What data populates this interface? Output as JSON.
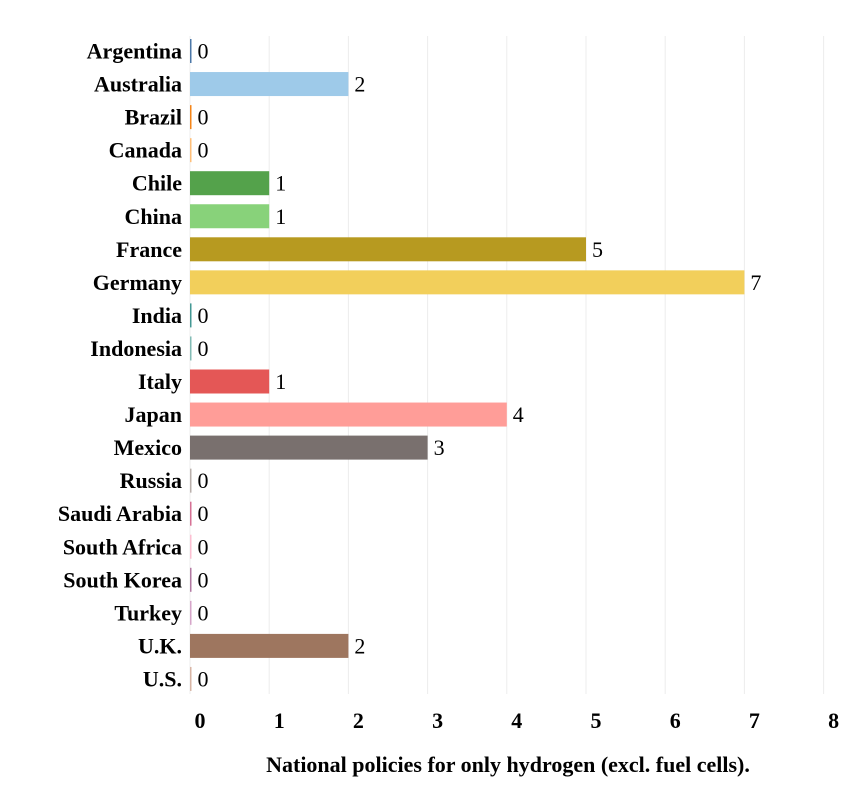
{
  "chart_data": {
    "type": "bar",
    "orientation": "horizontal",
    "categories": [
      "Argentina",
      "Australia",
      "Brazil",
      "Canada",
      "Chile",
      "China",
      "France",
      "Germany",
      "India",
      "Indonesia",
      "Italy",
      "Japan",
      "Mexico",
      "Russia",
      "Saudi Arabia",
      "South Africa",
      "South Korea",
      "Turkey",
      "U.K.",
      "U.S."
    ],
    "values": [
      0,
      2,
      0,
      0,
      1,
      1,
      5,
      7,
      0,
      0,
      1,
      4,
      3,
      0,
      0,
      0,
      0,
      0,
      2,
      0
    ],
    "value_labels": [
      "0",
      "2",
      "0",
      "0",
      "1",
      "1",
      "5",
      "7",
      "0",
      "0",
      "1",
      "4",
      "3",
      "0",
      "0",
      "0",
      "0",
      "0",
      "2",
      "0"
    ],
    "colors": [
      "#4c78a8",
      "#9ecae9",
      "#f58518",
      "#ffbf79",
      "#54a24b",
      "#88d27a",
      "#b79a20",
      "#f2cf5b",
      "#439894",
      "#83bcb6",
      "#e45756",
      "#ff9d98",
      "#79706e",
      "#bab0ac",
      "#d67195",
      "#fcbfd2",
      "#b279a2",
      "#d6a5c9",
      "#9e765f",
      "#d8b5a5"
    ],
    "xlabel": "National policies for only hydrogen (excl. fuel cells).",
    "xlim": [
      0,
      8
    ],
    "xticks": [
      "0",
      "1",
      "2",
      "3",
      "4",
      "5",
      "6",
      "7",
      "8"
    ],
    "grid": true
  }
}
